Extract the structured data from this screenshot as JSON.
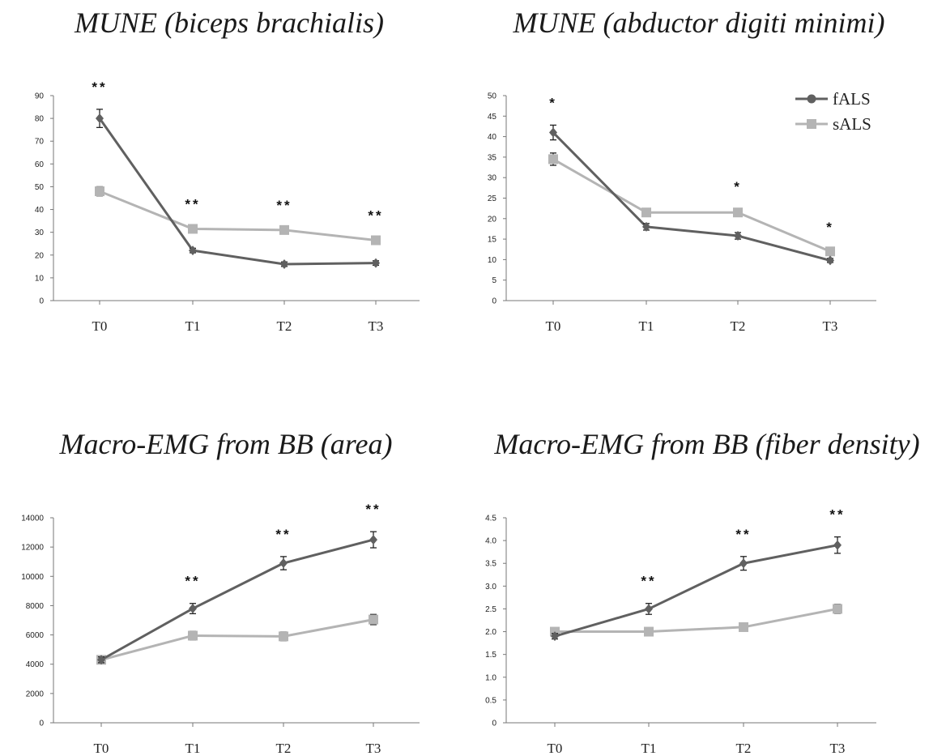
{
  "legend": [
    {
      "name": "fALS",
      "color": "#606060",
      "marker": "diamond"
    },
    {
      "name": "sALS",
      "color": "#b4b4b4",
      "marker": "square"
    }
  ],
  "chart_data": [
    {
      "type": "line",
      "title": "MUNE (biceps brachialis)",
      "categories": [
        "T0",
        "T1",
        "T2",
        "T3"
      ],
      "ylim": [
        0,
        90
      ],
      "yticks": [
        0,
        10,
        20,
        30,
        40,
        50,
        60,
        70,
        80,
        90
      ],
      "series": [
        {
          "name": "fALS",
          "values": [
            80,
            22,
            16,
            16.5
          ],
          "errors": [
            4,
            1,
            1,
            1
          ]
        },
        {
          "name": "sALS",
          "values": [
            48,
            31.5,
            31,
            26.5
          ],
          "errors": [
            2,
            1,
            1,
            1
          ]
        }
      ],
      "significance": [
        "**",
        "**",
        "**",
        "**"
      ],
      "grid": false
    },
    {
      "type": "line",
      "title": "MUNE (abductor digiti minimi)",
      "categories": [
        "T0",
        "T1",
        "T2",
        "T3"
      ],
      "ylim": [
        0,
        50
      ],
      "yticks": [
        0,
        5,
        10,
        15,
        20,
        25,
        30,
        35,
        40,
        45,
        50
      ],
      "series": [
        {
          "name": "fALS",
          "values": [
            41,
            18,
            15.8,
            9.8
          ],
          "errors": [
            1.8,
            0.8,
            0.8,
            0.5
          ]
        },
        {
          "name": "sALS",
          "values": [
            34.5,
            21.5,
            21.5,
            12
          ],
          "errors": [
            1.5,
            0.8,
            0.8,
            0.5
          ]
        }
      ],
      "significance": [
        "*",
        "",
        "*",
        "*"
      ],
      "legend_position": "top-right",
      "grid": false
    },
    {
      "type": "line",
      "title": "Macro-EMG from BB (area)",
      "categories": [
        "T0",
        "T1",
        "T2",
        "T3"
      ],
      "ylim": [
        0,
        14000
      ],
      "yticks": [
        0,
        2000,
        4000,
        6000,
        8000,
        10000,
        12000,
        14000
      ],
      "series": [
        {
          "name": "fALS",
          "values": [
            4300,
            7800,
            10900,
            12500
          ],
          "errors": [
            200,
            350,
            450,
            550
          ]
        },
        {
          "name": "sALS",
          "values": [
            4300,
            5950,
            5900,
            7050
          ],
          "errors": [
            200,
            300,
            300,
            350
          ]
        }
      ],
      "significance": [
        "",
        "**",
        "**",
        "**"
      ],
      "grid": false
    },
    {
      "type": "line",
      "title": "Macro-EMG from BB (fiber density)",
      "categories": [
        "T0",
        "T1",
        "T2",
        "T3"
      ],
      "ylim": [
        0,
        4.5
      ],
      "yticks": [
        "0",
        "0.5",
        "1.0",
        "1.5",
        "2.0",
        "2.5",
        "3.0",
        "3.5",
        "4.0",
        "4.5"
      ],
      "series": [
        {
          "name": "fALS",
          "values": [
            1.9,
            2.5,
            3.5,
            3.9
          ],
          "errors": [
            0.06,
            0.12,
            0.15,
            0.18
          ]
        },
        {
          "name": "sALS",
          "values": [
            2.0,
            2.0,
            2.1,
            2.5
          ],
          "errors": [
            0.06,
            0.06,
            0.08,
            0.1
          ]
        }
      ],
      "significance": [
        "",
        "**",
        "**",
        "**"
      ],
      "grid": false
    }
  ]
}
